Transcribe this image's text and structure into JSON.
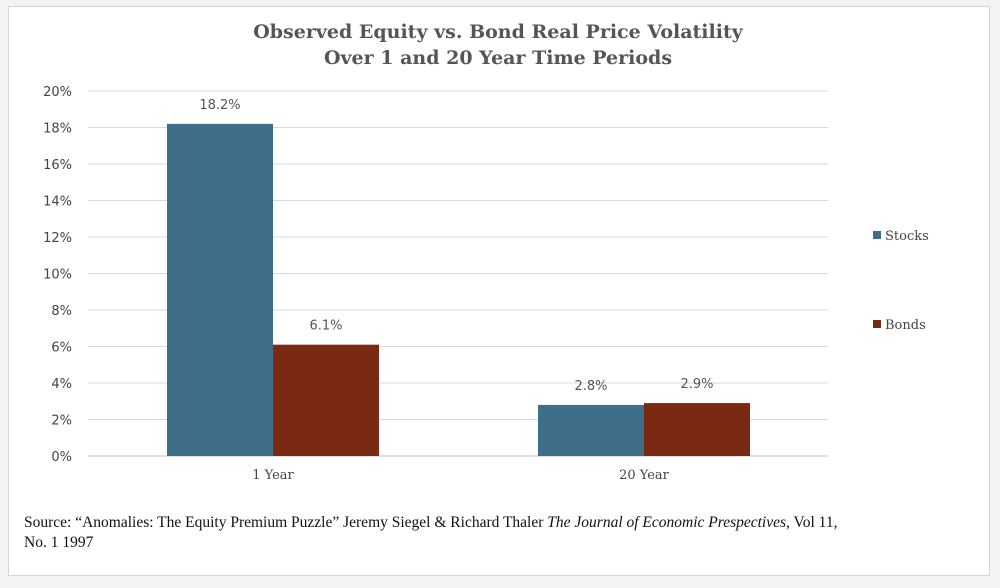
{
  "chart_data": {
    "type": "bar",
    "title": [
      "Observed Equity vs. Bond Real Price Volatility",
      "Over 1 and 20 Year Time Periods"
    ],
    "categories": [
      "1 Year",
      "20 Year"
    ],
    "series": [
      {
        "name": "Stocks",
        "color": "#3f6e8a",
        "values": [
          18.2,
          2.8
        ],
        "labels": [
          "18.2%",
          "2.8%"
        ]
      },
      {
        "name": "Bonds",
        "color": "#7a2a12",
        "values": [
          6.1,
          2.9
        ],
        "labels": [
          "6.1%",
          "2.9%"
        ]
      }
    ],
    "ylim": [
      0,
      20
    ],
    "yticks": [
      0,
      2,
      4,
      6,
      8,
      10,
      12,
      14,
      16,
      18,
      20
    ],
    "ytick_labels": [
      "0%",
      "2%",
      "4%",
      "6%",
      "8%",
      "10%",
      "12%",
      "14%",
      "16%",
      "18%",
      "20%"
    ],
    "grid": true,
    "legend_position": "right"
  },
  "source": {
    "prefix": "Source: “Anomalies: The Equity Premium Puzzle” Jeremy Siegel & Richard Thaler ",
    "journal": "The Journal of Economic Prespectives",
    "suffix": ", Vol 11, No. 1 1997"
  }
}
